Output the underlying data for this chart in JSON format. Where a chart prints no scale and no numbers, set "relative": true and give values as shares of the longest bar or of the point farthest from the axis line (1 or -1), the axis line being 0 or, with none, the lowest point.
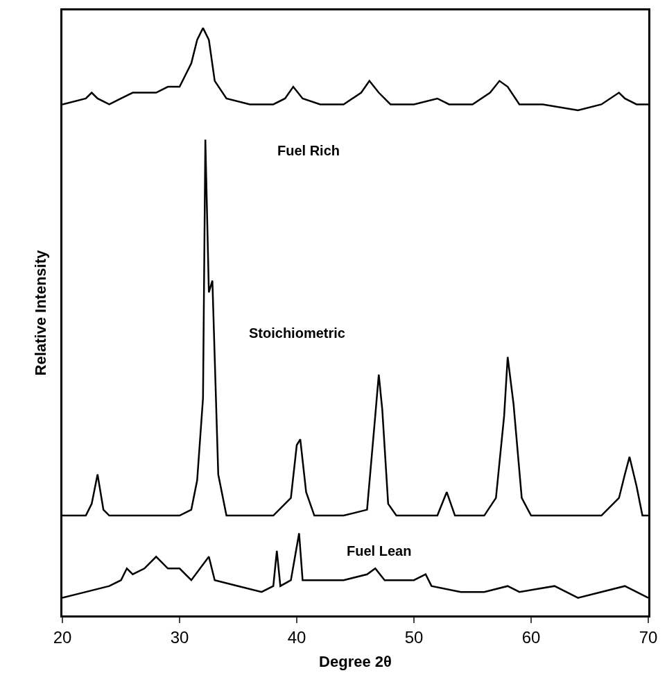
{
  "chart_data": {
    "type": "line",
    "relative": true,
    "xlabel": "Degree 2θ",
    "ylabel": "Relative Intensity",
    "xlim": [
      20,
      70
    ],
    "xticks": [
      20,
      30,
      40,
      50,
      60,
      70
    ],
    "marker": "none",
    "line_style": "solid",
    "series": [
      {
        "color": "#000000",
        "x": [
          20,
          22,
          22.5,
          23,
          24,
          25,
          26,
          28,
          29,
          30,
          31,
          31.5,
          32,
          32.5,
          33,
          34,
          36,
          38,
          39,
          39.7,
          40.5,
          42,
          44,
          45.5,
          46.2,
          47,
          48,
          50,
          52,
          53,
          55,
          56.5,
          57.3,
          58,
          59,
          61,
          64,
          66,
          67.5,
          68,
          69,
          70
        ],
        "values": [
          0.87,
          0.88,
          0.89,
          0.88,
          0.87,
          0.88,
          0.89,
          0.89,
          0.9,
          0.9,
          0.94,
          0.98,
          1.0,
          0.98,
          0.91,
          0.88,
          0.87,
          0.87,
          0.88,
          0.9,
          0.88,
          0.87,
          0.87,
          0.89,
          0.91,
          0.89,
          0.87,
          0.87,
          0.88,
          0.87,
          0.87,
          0.89,
          0.91,
          0.9,
          0.87,
          0.87,
          0.86,
          0.87,
          0.89,
          0.88,
          0.87,
          0.87
        ]
      },
      {
        "color": "#000000",
        "x": [
          20,
          22,
          22.5,
          23,
          23.5,
          24,
          28,
          30,
          31,
          31.5,
          32,
          32.2,
          32.5,
          32.8,
          33.3,
          34,
          36,
          38,
          39.5,
          40,
          40.3,
          40.8,
          41.5,
          44,
          46,
          46.7,
          47,
          47.3,
          47.8,
          48.5,
          52,
          52.8,
          53.5,
          56,
          57,
          57.7,
          58,
          58.5,
          59.2,
          60,
          66,
          67.5,
          68,
          68.4,
          69,
          69.5,
          70
        ],
        "values": [
          0.17,
          0.17,
          0.19,
          0.24,
          0.18,
          0.17,
          0.17,
          0.17,
          0.18,
          0.23,
          0.37,
          0.81,
          0.55,
          0.57,
          0.24,
          0.17,
          0.17,
          0.17,
          0.2,
          0.29,
          0.3,
          0.21,
          0.17,
          0.17,
          0.18,
          0.34,
          0.41,
          0.35,
          0.19,
          0.17,
          0.17,
          0.21,
          0.17,
          0.17,
          0.2,
          0.34,
          0.44,
          0.36,
          0.2,
          0.17,
          0.17,
          0.2,
          0.24,
          0.27,
          0.22,
          0.17,
          0.17
        ]
      },
      {
        "color": "#000000",
        "x": [
          20,
          22,
          24,
          25,
          25.5,
          26,
          27,
          28,
          29,
          30,
          31,
          32.5,
          33,
          35,
          37,
          38,
          38.3,
          38.6,
          39.5,
          40.2,
          40.5,
          42,
          44,
          46,
          46.7,
          47.5,
          50,
          51,
          51.5,
          54,
          56,
          58,
          59,
          62,
          64,
          68,
          69,
          70
        ],
        "values": [
          0.03,
          0.04,
          0.05,
          0.06,
          0.08,
          0.07,
          0.08,
          0.1,
          0.08,
          0.08,
          0.06,
          0.1,
          0.06,
          0.05,
          0.04,
          0.05,
          0.11,
          0.05,
          0.06,
          0.14,
          0.06,
          0.06,
          0.06,
          0.07,
          0.08,
          0.06,
          0.06,
          0.07,
          0.05,
          0.04,
          0.04,
          0.05,
          0.04,
          0.05,
          0.03,
          0.05,
          0.04,
          0.03
        ]
      }
    ],
    "annotations": [
      "Fuel Rich",
      "Stoichiometric",
      "Fuel Lean"
    ]
  }
}
